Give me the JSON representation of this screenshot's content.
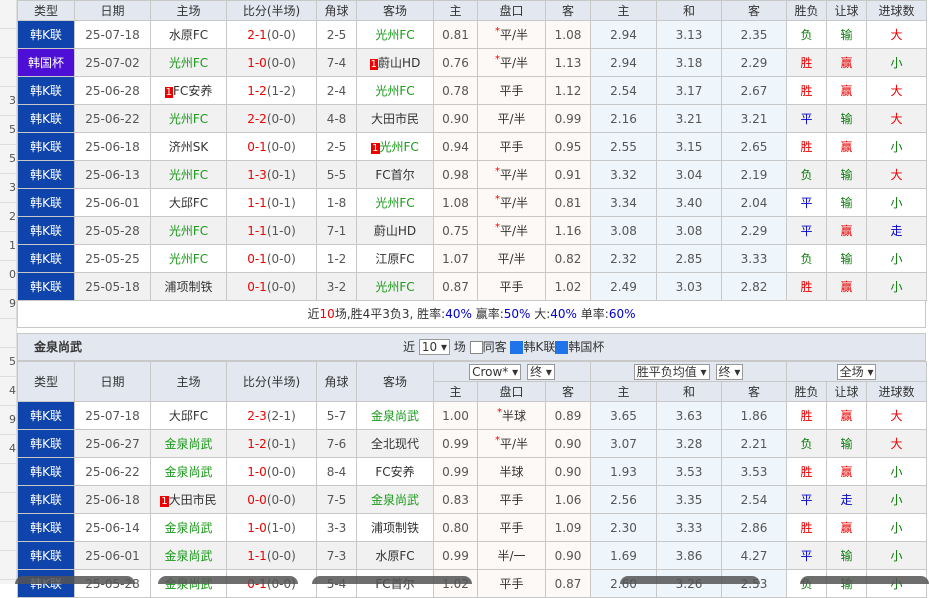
{
  "left_strip": [
    "",
    "",
    "",
    "3",
    "5",
    "5",
    "3",
    "2",
    "1",
    "0",
    "9",
    "",
    "5",
    "4",
    "9",
    "4",
    "",
    "",
    "",
    ""
  ],
  "team1": {
    "headers": [
      "类型",
      "日期",
      "主场",
      "比分(半场)",
      "角球",
      "客场",
      "主",
      "盘口",
      "客",
      "主",
      "和",
      "客",
      "胜负",
      "让球",
      "进球数"
    ],
    "rows": [
      {
        "type": "韩K联",
        "date": "25-07-18",
        "home": "水原FC",
        "home_hl": false,
        "score": "2-1",
        "half": "(0-0)",
        "corner": "2-5",
        "away": "光州FC",
        "away_hl": true,
        "h": "0.81",
        "line": "平/半",
        "star": true,
        "a": "1.08",
        "eh": "2.94",
        "ed": "3.13",
        "ea": "2.35",
        "wl": "负",
        "hc": "输",
        "ou": "大"
      },
      {
        "type": "韩国杯",
        "date": "25-07-02",
        "home": "光州FC",
        "home_hl": true,
        "score": "1-0",
        "half": "(0-0)",
        "corner": "7-4",
        "away": "蔚山HD",
        "away_badge": "1",
        "away_hl": false,
        "h": "0.76",
        "line": "平/半",
        "star": true,
        "a": "1.13",
        "eh": "2.94",
        "ed": "3.18",
        "ea": "2.29",
        "wl": "胜",
        "hc": "赢",
        "ou": "小"
      },
      {
        "type": "韩K联",
        "date": "25-06-28",
        "home": "FC安养",
        "home_badge": "1",
        "home_hl": false,
        "score": "1-2",
        "half": "(1-2)",
        "corner": "2-4",
        "away": "光州FC",
        "away_hl": true,
        "h": "0.78",
        "line": "平手",
        "star": false,
        "a": "1.12",
        "eh": "2.54",
        "ed": "3.17",
        "ea": "2.67",
        "wl": "胜",
        "hc": "赢",
        "ou": "大"
      },
      {
        "type": "韩K联",
        "date": "25-06-22",
        "home": "光州FC",
        "home_hl": true,
        "score": "2-2",
        "half": "(0-0)",
        "corner": "4-8",
        "away": "大田市民",
        "away_hl": false,
        "h": "0.90",
        "line": "平/半",
        "star": false,
        "a": "0.99",
        "eh": "2.16",
        "ed": "3.21",
        "ea": "3.21",
        "wl": "平",
        "hc": "输",
        "ou": "大"
      },
      {
        "type": "韩K联",
        "date": "25-06-18",
        "home": "济州SK",
        "home_hl": false,
        "score": "0-1",
        "half": "(0-0)",
        "corner": "2-5",
        "away": "光州FC",
        "away_badge": "1",
        "away_hl": true,
        "h": "0.94",
        "line": "平手",
        "star": false,
        "a": "0.95",
        "eh": "2.55",
        "ed": "3.15",
        "ea": "2.65",
        "wl": "胜",
        "hc": "赢",
        "ou": "小"
      },
      {
        "type": "韩K联",
        "date": "25-06-13",
        "home": "光州FC",
        "home_hl": true,
        "score": "1-3",
        "half": "(0-1)",
        "corner": "5-5",
        "away": "FC首尔",
        "away_hl": false,
        "h": "0.98",
        "line": "平/半",
        "star": true,
        "a": "0.91",
        "eh": "3.32",
        "ed": "3.04",
        "ea": "2.19",
        "wl": "负",
        "hc": "输",
        "ou": "大"
      },
      {
        "type": "韩K联",
        "date": "25-06-01",
        "home": "大邱FC",
        "home_hl": false,
        "score": "1-1",
        "half": "(0-1)",
        "corner": "1-8",
        "away": "光州FC",
        "away_hl": true,
        "h": "1.08",
        "line": "平/半",
        "star": true,
        "a": "0.81",
        "eh": "3.34",
        "ed": "3.40",
        "ea": "2.04",
        "wl": "平",
        "hc": "输",
        "ou": "小"
      },
      {
        "type": "韩K联",
        "date": "25-05-28",
        "home": "光州FC",
        "home_hl": true,
        "score": "1-1",
        "half": "(1-0)",
        "corner": "7-1",
        "away": "蔚山HD",
        "away_hl": false,
        "h": "0.75",
        "line": "平/半",
        "star": true,
        "a": "1.16",
        "eh": "3.08",
        "ed": "3.08",
        "ea": "2.29",
        "wl": "平",
        "hc": "赢",
        "ou": "走"
      },
      {
        "type": "韩K联",
        "date": "25-05-25",
        "home": "光州FC",
        "home_hl": true,
        "score": "0-1",
        "half": "(0-0)",
        "corner": "1-2",
        "away": "江原FC",
        "away_hl": false,
        "h": "1.07",
        "line": "平/半",
        "star": false,
        "a": "0.82",
        "eh": "2.32",
        "ed": "2.85",
        "ea": "3.33",
        "wl": "负",
        "hc": "输",
        "ou": "小"
      },
      {
        "type": "韩K联",
        "date": "25-05-18",
        "home": "浦项制铁",
        "home_hl": false,
        "score": "0-1",
        "half": "(0-0)",
        "corner": "3-2",
        "away": "光州FC",
        "away_hl": true,
        "h": "0.87",
        "line": "平手",
        "star": false,
        "a": "1.02",
        "eh": "2.49",
        "ed": "3.03",
        "ea": "2.82",
        "wl": "胜",
        "hc": "赢",
        "ou": "小"
      }
    ],
    "summary": {
      "p1": "近",
      "n": "10",
      "p2": "场,胜4平3负3, 胜率:",
      "win": "40%",
      "p3": " 赢率:",
      "hcw": "50%",
      "p4": " 大:",
      "big": "40%",
      "p5": " 单率:",
      "odd": "60%"
    }
  },
  "team2": {
    "title": "金泉尚武",
    "filter": {
      "near": "近",
      "count": "10",
      "games": "场",
      "same_away": "同客",
      "league1": "韩K联",
      "league2": "韩国杯"
    },
    "headers": [
      "类型",
      "日期",
      "主场",
      "比分(半场)",
      "角球",
      "客场"
    ],
    "selects": {
      "company": "Crow*",
      "time1": "终",
      "europe": "胜平负均值",
      "time2": "终",
      "scope": "全场"
    },
    "subheaders": [
      "主",
      "盘口",
      "客",
      "主",
      "和",
      "客",
      "胜负",
      "让球",
      "进球数"
    ],
    "rows": [
      {
        "type": "韩K联",
        "date": "25-07-18",
        "home": "大邱FC",
        "home_hl": false,
        "score": "2-3",
        "half": "(2-1)",
        "corner": "5-7",
        "away": "金泉尚武",
        "away_hl": true,
        "h": "1.00",
        "line": "半球",
        "star": true,
        "a": "0.89",
        "eh": "3.65",
        "ed": "3.63",
        "ea": "1.86",
        "wl": "胜",
        "hc": "赢",
        "ou": "大"
      },
      {
        "type": "韩K联",
        "date": "25-06-27",
        "home": "金泉尚武",
        "home_hl": true,
        "score": "1-2",
        "half": "(0-1)",
        "corner": "7-6",
        "away": "全北现代",
        "away_hl": false,
        "h": "0.99",
        "line": "平/半",
        "star": true,
        "a": "0.90",
        "eh": "3.07",
        "ed": "3.28",
        "ea": "2.21",
        "wl": "负",
        "hc": "输",
        "ou": "大"
      },
      {
        "type": "韩K联",
        "date": "25-06-22",
        "home": "金泉尚武",
        "home_hl": true,
        "score": "1-0",
        "half": "(0-0)",
        "corner": "8-4",
        "away": "FC安养",
        "away_hl": false,
        "h": "0.99",
        "line": "半球",
        "star": false,
        "a": "0.90",
        "eh": "1.93",
        "ed": "3.53",
        "ea": "3.53",
        "wl": "胜",
        "hc": "赢",
        "ou": "小"
      },
      {
        "type": "韩K联",
        "date": "25-06-18",
        "home": "大田市民",
        "home_badge": "1",
        "home_hl": false,
        "score": "0-0",
        "half": "(0-0)",
        "corner": "7-5",
        "away": "金泉尚武",
        "away_hl": true,
        "h": "0.83",
        "line": "平手",
        "star": false,
        "a": "1.06",
        "eh": "2.56",
        "ed": "3.35",
        "ea": "2.54",
        "wl": "平",
        "hc": "走",
        "ou": "小"
      },
      {
        "type": "韩K联",
        "date": "25-06-14",
        "home": "金泉尚武",
        "home_hl": true,
        "score": "1-0",
        "half": "(1-0)",
        "corner": "3-3",
        "away": "浦项制铁",
        "away_hl": false,
        "h": "0.80",
        "line": "平手",
        "star": false,
        "a": "1.09",
        "eh": "2.30",
        "ed": "3.33",
        "ea": "2.86",
        "wl": "胜",
        "hc": "赢",
        "ou": "小"
      },
      {
        "type": "韩K联",
        "date": "25-06-01",
        "home": "金泉尚武",
        "home_hl": true,
        "score": "1-1",
        "half": "(0-0)",
        "corner": "7-3",
        "away": "水原FC",
        "away_hl": false,
        "h": "0.99",
        "line": "半/一",
        "star": false,
        "a": "0.90",
        "eh": "1.69",
        "ed": "3.86",
        "ea": "4.27",
        "wl": "平",
        "hc": "输",
        "ou": "小"
      },
      {
        "type": "韩K联",
        "date": "25-05-28",
        "home": "金泉尚武",
        "home_hl": true,
        "score": "0-1",
        "half": "(0-0)",
        "corner": "5-4",
        "away": "FC首尔",
        "away_hl": false,
        "h": "1.02",
        "line": "平手",
        "star": false,
        "a": "0.87",
        "eh": "2.60",
        "ed": "3.26",
        "ea": "2.53",
        "wl": "负",
        "hc": "输",
        "ou": "小"
      }
    ]
  },
  "colors": {
    "league": "#0f44ad",
    "cup": "#4d0fd6",
    "win": "#e00",
    "lose": "#0a7a0a",
    "draw": "#00c",
    "highlight_team": "#1a9a1a"
  }
}
